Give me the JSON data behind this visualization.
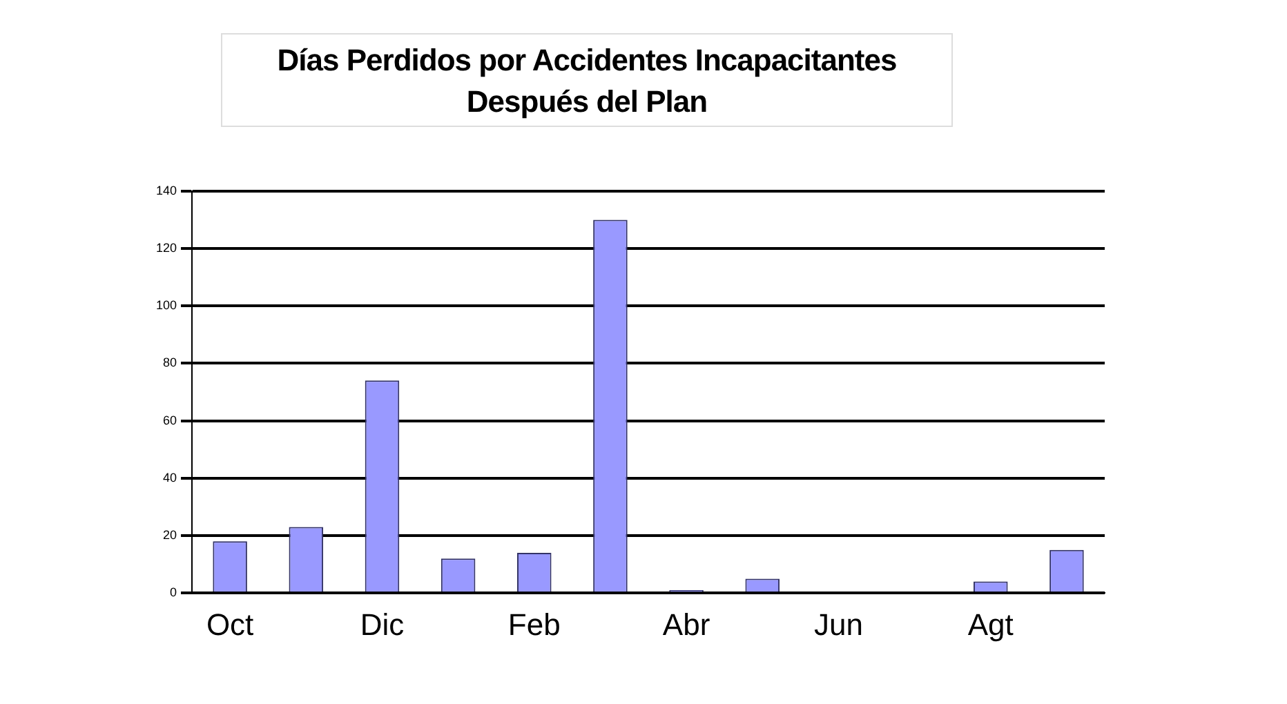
{
  "chart_data": {
    "type": "bar",
    "title": "Días Perdidos por Accidentes Incapacitantes\nDespués del Plan",
    "categories": [
      "Oct",
      null,
      "Dic",
      null,
      "Feb",
      null,
      "Abr",
      null,
      "Jun",
      null,
      "Agt",
      null
    ],
    "values": [
      18,
      23,
      74,
      12,
      14,
      130,
      1,
      5,
      0,
      0,
      4,
      15
    ],
    "color": "#9999ff",
    "ylim": [
      0,
      140
    ],
    "yticks": [
      0,
      20,
      40,
      60,
      80,
      100,
      120,
      140
    ],
    "grid": "y"
  }
}
